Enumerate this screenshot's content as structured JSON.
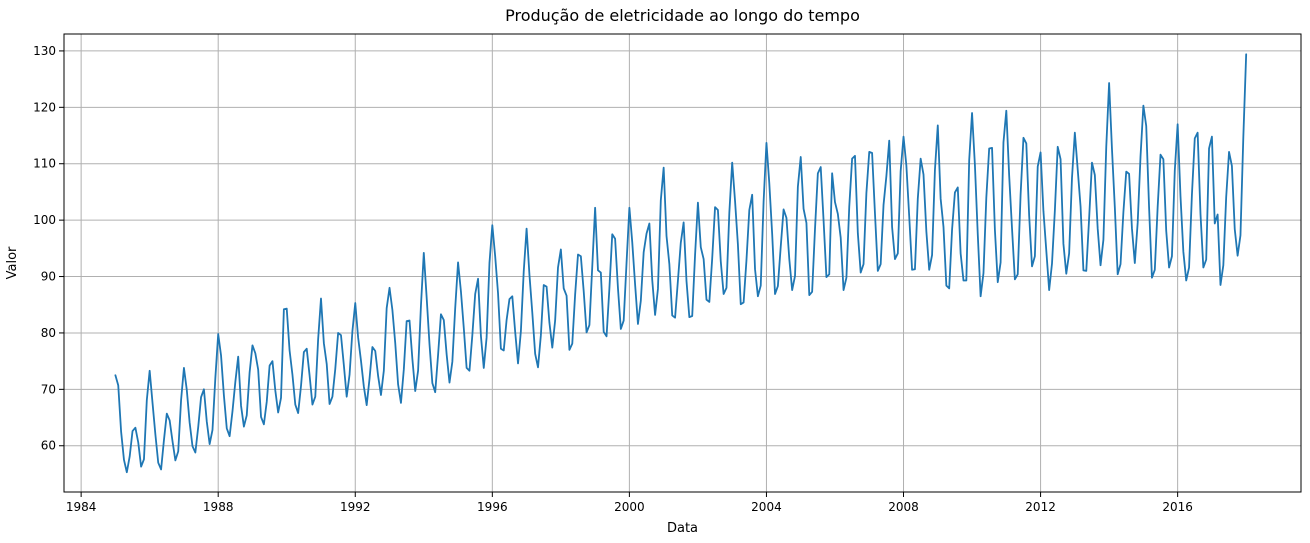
{
  "chart_data": {
    "type": "line",
    "title": "Produção de eletricidade ao longo do tempo",
    "xlabel": "Data",
    "ylabel": "Valor",
    "xlim": [
      1983.5,
      2019.6
    ],
    "ylim": [
      51.8,
      133
    ],
    "x_ticks": [
      "1984",
      "1988",
      "1992",
      "1996",
      "2000",
      "2004",
      "2008",
      "2012",
      "2016"
    ],
    "y_ticks": [
      60,
      70,
      80,
      90,
      100,
      110,
      120,
      130
    ],
    "grid": true,
    "legend": "none",
    "series_color": "#1f77b4",
    "x_start": "1985-01",
    "x_frequency": "monthly",
    "series": [
      {
        "values": [
          72.5,
          70.7,
          62.5,
          57.5,
          55.3,
          58.1,
          62.6,
          63.2,
          60.6,
          56.3,
          57.6,
          68.1,
          73.3,
          67.6,
          62.0,
          57.0,
          55.8,
          61.0,
          65.7,
          64.5,
          60.8,
          57.4,
          59.0,
          68.1,
          73.8,
          69.9,
          64.1,
          59.9,
          58.8,
          63.3,
          68.6,
          70.0,
          64.3,
          60.3,
          62.8,
          72.0,
          79.8,
          76.0,
          68.9,
          63.1,
          61.7,
          66.1,
          71.3,
          75.8,
          67.1,
          63.4,
          65.4,
          73.0,
          77.8,
          76.4,
          73.5,
          65.1,
          63.8,
          67.8,
          74.2,
          75.0,
          69.8,
          65.9,
          68.5,
          84.2,
          84.3,
          76.9,
          72.6,
          67.3,
          65.8,
          70.6,
          76.6,
          77.2,
          72.5,
          67.3,
          68.7,
          78.9,
          86.1,
          78.2,
          74.5,
          67.4,
          68.7,
          73.6,
          80.0,
          79.6,
          74.3,
          68.7,
          72.6,
          80.3,
          85.3,
          79.2,
          75.1,
          70.5,
          67.2,
          71.9,
          77.5,
          76.8,
          72.4,
          69.0,
          73.3,
          84.4,
          88.0,
          84.1,
          78.2,
          70.9,
          67.6,
          73.5,
          82.1,
          82.2,
          75.4,
          69.7,
          73.3,
          84.8,
          94.2,
          86.3,
          78.0,
          71.1,
          69.5,
          76.1,
          83.3,
          82.3,
          76.2,
          71.2,
          74.9,
          84.4,
          92.5,
          87.4,
          80.9,
          73.8,
          73.3,
          79.6,
          86.9,
          89.6,
          79.5,
          73.8,
          79.2,
          92.4,
          99.1,
          93.6,
          87.0,
          77.2,
          76.9,
          82.3,
          86.0,
          86.5,
          80.2,
          74.6,
          80.3,
          90.9,
          98.5,
          90.3,
          83.6,
          76.3,
          73.9,
          79.6,
          88.5,
          88.2,
          81.8,
          77.4,
          82.2,
          91.6,
          94.8,
          87.9,
          86.6,
          77.0,
          78.1,
          86.8,
          93.9,
          93.6,
          87.4,
          80.1,
          81.4,
          91.8,
          102.2,
          91.1,
          90.7,
          80.2,
          79.4,
          87.9,
          97.5,
          96.7,
          87.9,
          80.7,
          82.2,
          92.4,
          102.2,
          96.1,
          88.6,
          81.6,
          85.7,
          94.3,
          97.6,
          99.4,
          89.4,
          83.2,
          87.8,
          103.5,
          109.3,
          97.2,
          92.2,
          83.1,
          82.7,
          89.3,
          96.0,
          99.6,
          89.2,
          82.8,
          83.0,
          93.8,
          103.1,
          95.2,
          93.1,
          85.9,
          85.5,
          93.2,
          102.3,
          101.8,
          92.7,
          86.9,
          88.0,
          101.3,
          110.2,
          103.4,
          95.7,
          85.1,
          85.4,
          92.9,
          101.8,
          104.5,
          91.3,
          86.5,
          88.4,
          103.3,
          113.7,
          106.5,
          97.6,
          86.9,
          88.3,
          95.3,
          101.9,
          100.4,
          93.1,
          87.6,
          90.1,
          105.9,
          111.2,
          102.0,
          99.5,
          86.7,
          87.3,
          98.4,
          108.3,
          109.4,
          100.0,
          89.9,
          90.4,
          108.3,
          103.2,
          101.1,
          96.9,
          87.6,
          89.8,
          102.4,
          110.9,
          111.4,
          97.7,
          90.7,
          92.2,
          104.8,
          112.1,
          111.9,
          101.2,
          91.0,
          92.2,
          102.7,
          107.8,
          114.1,
          98.8,
          93.1,
          94.1,
          108.7,
          114.8,
          109.7,
          100.6,
          91.2,
          91.3,
          103.8,
          110.9,
          108.1,
          98.0,
          91.2,
          93.8,
          108.9,
          116.8,
          103.8,
          98.8,
          88.4,
          87.9,
          98.3,
          104.9,
          105.8,
          94.1,
          89.3,
          89.3,
          110.6,
          119.0,
          109.8,
          97.5,
          86.5,
          90.6,
          104.0,
          112.7,
          112.8,
          98.3,
          89.0,
          92.5,
          113.8,
          119.4,
          107.9,
          98.5,
          89.5,
          90.4,
          104.5,
          114.6,
          113.6,
          100.8,
          91.8,
          93.6,
          109.5,
          112.0,
          101.6,
          94.6,
          87.6,
          92.3,
          101.7,
          113.0,
          110.8,
          95.8,
          90.5,
          94.1,
          107.5,
          115.5,
          109.0,
          102.4,
          91.1,
          91.0,
          100.3,
          110.2,
          108.0,
          98.5,
          92.0,
          96.5,
          113.0,
          124.3,
          112.6,
          102.3,
          90.4,
          92.2,
          101.4,
          108.6,
          108.2,
          98.5,
          92.4,
          99.5,
          111.3,
          120.3,
          116.7,
          102.2,
          89.8,
          91.2,
          102.3,
          111.6,
          110.8,
          98.1,
          91.6,
          93.6,
          108.8,
          117.0,
          104.2,
          94.4,
          89.3,
          91.6,
          104.5,
          114.5,
          115.5,
          101.1,
          91.6,
          93.0,
          112.7,
          114.8,
          99.4,
          101.0,
          88.5,
          92.0,
          104.1,
          112.1,
          109.6,
          98.4,
          93.7,
          97.3,
          114.7,
          129.4
        ]
      }
    ]
  }
}
